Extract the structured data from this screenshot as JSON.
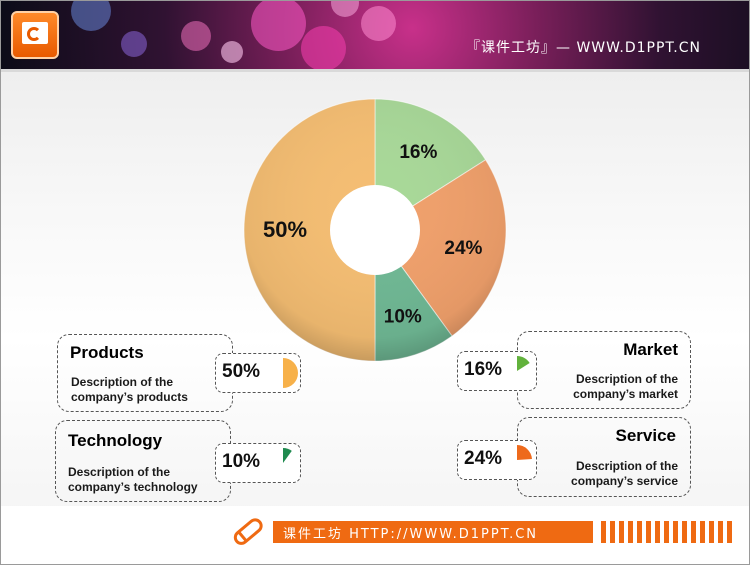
{
  "header": {
    "site_text": "『课件工坊』— WWW.D1PPT.CN"
  },
  "footer": {
    "text": "课件工坊  HTTP://WWW.D1PPT.CN"
  },
  "colors": {
    "products": "#f7b14a",
    "technology": "#1f8a4f",
    "market": "#62b23c",
    "service": "#ee6a1c"
  },
  "chart_data": {
    "type": "pie",
    "donut": true,
    "title": "",
    "slices": [
      {
        "label": "Market",
        "value": 16,
        "display": "16%",
        "color": "#a8d898"
      },
      {
        "label": "Service",
        "value": 24,
        "display": "24%",
        "color": "#f0a06b"
      },
      {
        "label": "Technology",
        "value": 10,
        "display": "10%",
        "color": "#6fb894"
      },
      {
        "label": "Products",
        "value": 50,
        "display": "50%",
        "color": "#f4bd72"
      }
    ]
  },
  "callouts": {
    "products": {
      "title": "Products",
      "desc_line1": "Description of the",
      "desc_line2": "company’s products",
      "percent": "50%",
      "value": 50
    },
    "technology": {
      "title": "Technology",
      "desc_line1": "Description of the",
      "desc_line2": "company’s technology",
      "percent": "10%",
      "value": 10
    },
    "market": {
      "title": "Market",
      "desc_line1": "Description of the",
      "desc_line2": "company’s market",
      "percent": "16%",
      "value": 16
    },
    "service": {
      "title": "Service",
      "desc_line1": "Description of the",
      "desc_line2": "company’s service",
      "percent": "24%",
      "value": 24
    }
  }
}
